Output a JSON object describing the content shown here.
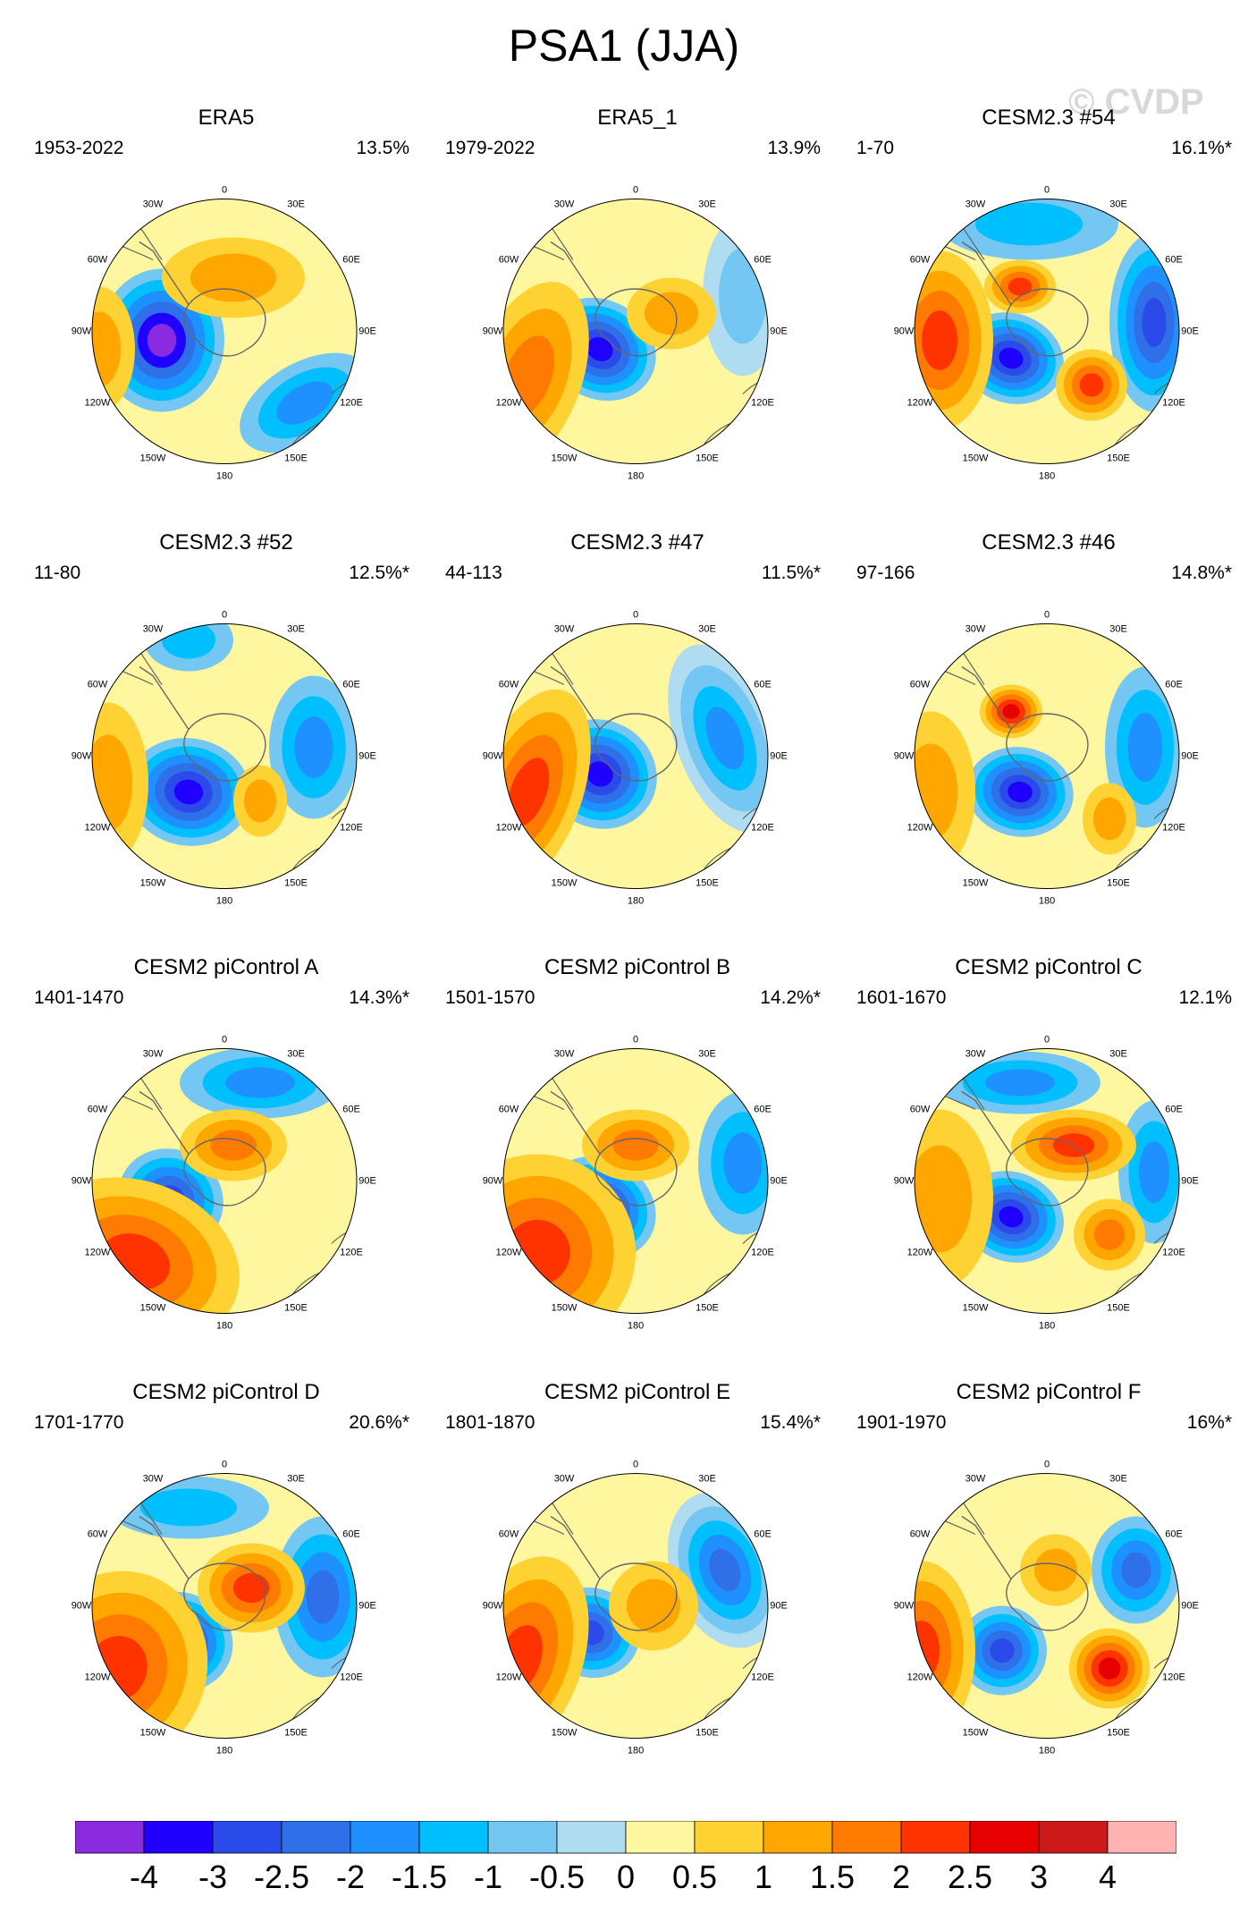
{
  "title": "PSA1 (JJA)",
  "watermark": "© CVDP",
  "colorbar": {
    "levels": [
      "-4",
      "-3",
      "-2.5",
      "-2",
      "-1.5",
      "-1",
      "-0.5",
      "0",
      "0.5",
      "1",
      "1.5",
      "2",
      "2.5",
      "3",
      "4"
    ],
    "colors": [
      "#8a2be2",
      "#1f00ff",
      "#2a4bea",
      "#2f70e8",
      "#1e90ff",
      "#00bfff",
      "#73c7f2",
      "#b0dcf2",
      "#fff7a0",
      "#ffd233",
      "#ffa600",
      "#ff7a00",
      "#ff3300",
      "#e60000",
      "#cc1a1a",
      "#ffb3b3"
    ]
  },
  "map_labels": {
    "lon_0": "0",
    "lon_30e": "30E",
    "lon_60e": "60E",
    "lon_90e": "90E",
    "lon_120e": "120E",
    "lon_150e": "150E",
    "lon_180": "180",
    "lon_150w": "150W",
    "lon_120w": "120W",
    "lon_90w": "90W",
    "lon_60w": "60W",
    "lon_30w": "30W"
  },
  "panels": [
    {
      "title": "ERA5",
      "period": "1953-2022",
      "pct": "13.5%"
    },
    {
      "title": "ERA5_1",
      "period": "1979-2022",
      "pct": "13.9%"
    },
    {
      "title": "CESM2.3 #54",
      "period": "1-70",
      "pct": "16.1%*"
    },
    {
      "title": "CESM2.3 #52",
      "period": "11-80",
      "pct": "12.5%*"
    },
    {
      "title": "CESM2.3 #47",
      "period": "44-113",
      "pct": "11.5%*"
    },
    {
      "title": "CESM2.3 #46",
      "period": "97-166",
      "pct": "14.8%*"
    },
    {
      "title": "CESM2 piControl A",
      "period": "1401-1470",
      "pct": "14.3%*"
    },
    {
      "title": "CESM2 piControl B",
      "period": "1501-1570",
      "pct": "14.2%*"
    },
    {
      "title": "CESM2 piControl C",
      "period": "1601-1670",
      "pct": "12.1%"
    },
    {
      "title": "CESM2 piControl D",
      "period": "1701-1770",
      "pct": "20.6%*"
    },
    {
      "title": "CESM2 piControl E",
      "period": "1801-1870",
      "pct": "15.4%*"
    },
    {
      "title": "CESM2 piControl F",
      "period": "1901-1970",
      "pct": "16%*"
    }
  ]
}
